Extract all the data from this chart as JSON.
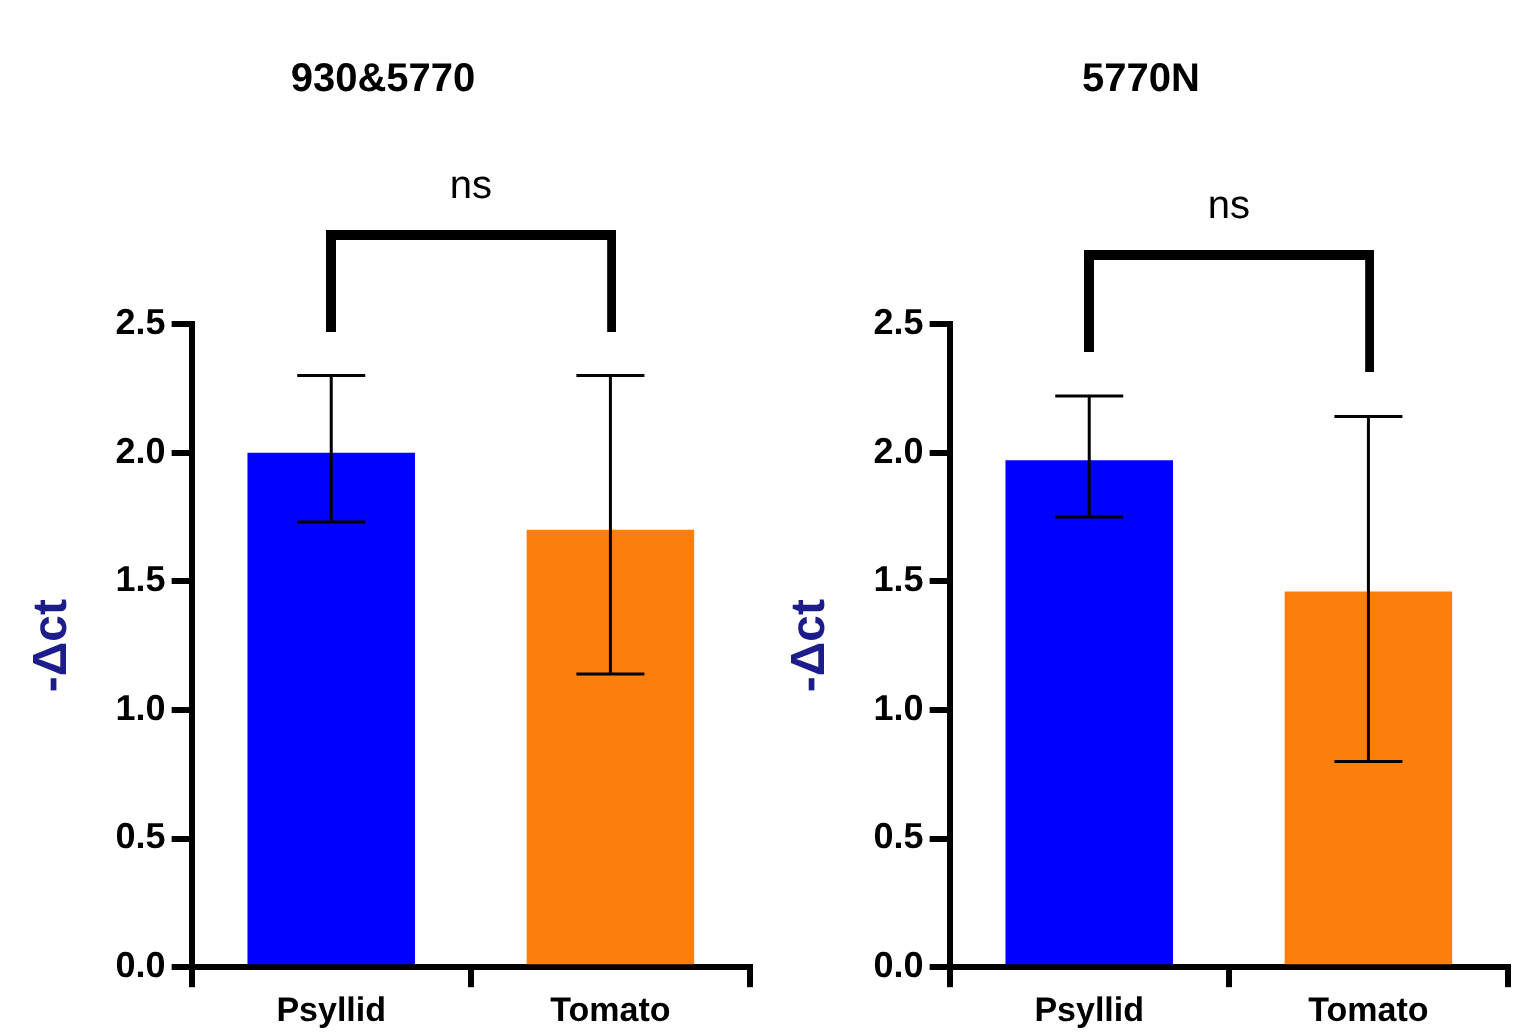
{
  "chart_data": [
    {
      "type": "bar",
      "title": "930&5770",
      "ylabel": "-Δct",
      "categories": [
        "Psyllid",
        "Tomato"
      ],
      "values": [
        2.0,
        1.7
      ],
      "colors": [
        "#0000ff",
        "#fd7f0b"
      ],
      "errors": [
        [
          1.73,
          2.3
        ],
        [
          1.14,
          2.3
        ]
      ],
      "ylim": [
        0,
        2.5
      ],
      "yticks": [
        {
          "value": 0,
          "label": "0.0"
        },
        {
          "value": 0.5,
          "label": "0.5"
        },
        {
          "value": 1,
          "label": "1.0"
        },
        {
          "value": 1.5,
          "label": "1.5"
        },
        {
          "value": 2,
          "label": "2.0"
        },
        {
          "value": 2.5,
          "label": "2.5"
        }
      ],
      "grid": false,
      "legend": false,
      "annotations": [
        "ns"
      ]
    },
    {
      "type": "bar",
      "title": "5770N",
      "ylabel": "-Δct",
      "categories": [
        "Psyllid",
        "Tomato"
      ],
      "values": [
        1.97,
        1.46
      ],
      "colors": [
        "#0000ff",
        "#fd7f0b"
      ],
      "errors": [
        [
          1.75,
          2.22
        ],
        [
          0.8,
          2.14
        ]
      ],
      "ylim": [
        0,
        2.5
      ],
      "yticks": [
        {
          "value": 0,
          "label": "0.0"
        },
        {
          "value": 0.5,
          "label": "0.5"
        },
        {
          "value": 1,
          "label": "1.0"
        },
        {
          "value": 1.5,
          "label": "1.5"
        },
        {
          "value": 2,
          "label": "2.0"
        },
        {
          "value": 2.5,
          "label": "2.5"
        }
      ],
      "grid": false,
      "legend": false,
      "annotations": [
        "ns"
      ]
    }
  ]
}
